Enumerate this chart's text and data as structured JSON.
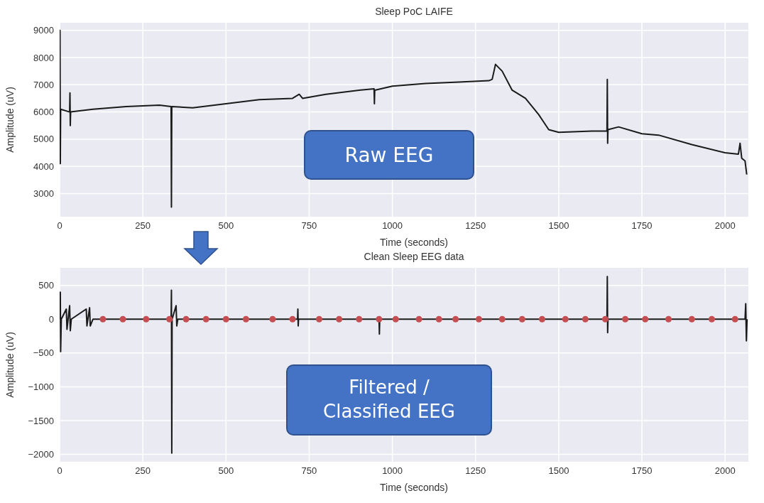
{
  "chart_data": [
    {
      "type": "line",
      "title": "Sleep PoC LAIFE",
      "xlabel": "Time (seconds)",
      "ylabel": "Amplitude (uV)",
      "xlim": [
        0,
        2070
      ],
      "xticks": [
        0,
        250,
        500,
        750,
        1000,
        1250,
        1500,
        1750,
        2000
      ],
      "ylim": [
        2150,
        9280
      ],
      "yticks": [
        3000,
        4000,
        5000,
        6000,
        7000,
        8000,
        9000
      ],
      "grid": true,
      "annotations": [
        "Raw EEG"
      ],
      "series": [
        {
          "color": "#1a1a1a",
          "x": [
            0,
            1,
            2,
            3,
            30,
            31,
            32,
            33,
            100,
            200,
            300,
            335,
            336,
            337,
            400,
            500,
            600,
            700,
            720,
            730,
            800,
            900,
            945,
            946,
            947,
            1000,
            1100,
            1200,
            1290,
            1300,
            1310,
            1330,
            1360,
            1400,
            1440,
            1470,
            1500,
            1600,
            1645,
            1646,
            1647,
            1648,
            1680,
            1750,
            1800,
            1900,
            2000,
            2040,
            2045,
            2050,
            2060,
            2065
          ],
          "values": [
            6200,
            9000,
            4100,
            6100,
            6000,
            6700,
            5500,
            6000,
            6100,
            6200,
            6250,
            6200,
            2500,
            6200,
            6150,
            6300,
            6450,
            6500,
            6650,
            6500,
            6650,
            6800,
            6850,
            6300,
            6800,
            6950,
            7050,
            7100,
            7150,
            7200,
            7750,
            7500,
            6800,
            6500,
            5900,
            5350,
            5250,
            5300,
            5300,
            7200,
            4850,
            5350,
            5450,
            5200,
            5150,
            4800,
            4500,
            4450,
            4850,
            4300,
            4200,
            3700
          ]
        }
      ]
    },
    {
      "type": "line",
      "title": "Clean Sleep EEG data",
      "xlabel": "Time (seconds)",
      "ylabel": "Amplitude (uV)",
      "xlim": [
        0,
        2070
      ],
      "xticks": [
        0,
        250,
        500,
        750,
        1000,
        1250,
        1500,
        1750,
        2000
      ],
      "ylim": [
        -2110,
        760
      ],
      "yticks": [
        {
          "value": 500,
          "label": "500"
        },
        {
          "value": 0,
          "label": "0"
        },
        {
          "value": -500,
          "label": "−500"
        },
        {
          "value": -1000,
          "label": "−1000"
        },
        {
          "value": -1500,
          "label": "−1500"
        },
        {
          "value": -2000,
          "label": "−2000"
        }
      ],
      "grid": true,
      "annotations": [
        "Filtered / Classified EEG"
      ],
      "series": [
        {
          "color": "#1a1a1a",
          "x": [
            0,
            2,
            3,
            5,
            20,
            22,
            30,
            32,
            35,
            80,
            82,
            90,
            92,
            100,
            335,
            336,
            337,
            338,
            350,
            352,
            355,
            715,
            716,
            717,
            718,
            960,
            961,
            962,
            1645,
            1646,
            1647,
            1648,
            2060,
            2062,
            2064,
            2066
          ],
          "values": [
            0,
            400,
            -480,
            0,
            150,
            -150,
            200,
            -170,
            0,
            150,
            -100,
            170,
            -100,
            0,
            0,
            430,
            -1980,
            0,
            200,
            -100,
            0,
            0,
            150,
            -100,
            0,
            0,
            -220,
            0,
            0,
            630,
            -200,
            0,
            0,
            230,
            -320,
            0
          ]
        },
        {
          "type": "scatter",
          "marker": "circle",
          "color": "#c44e52",
          "x": [
            130,
            190,
            260,
            330,
            380,
            440,
            500,
            560,
            640,
            700,
            780,
            840,
            900,
            960,
            1010,
            1080,
            1140,
            1190,
            1260,
            1330,
            1390,
            1450,
            1520,
            1580,
            1640,
            1700,
            1760,
            1830,
            1900,
            1960,
            2030
          ],
          "values": [
            0,
            0,
            0,
            0,
            0,
            0,
            0,
            0,
            0,
            0,
            0,
            0,
            0,
            0,
            0,
            0,
            0,
            0,
            0,
            0,
            0,
            0,
            0,
            0,
            0,
            0,
            0,
            0,
            0,
            0,
            0
          ]
        }
      ]
    }
  ]
}
